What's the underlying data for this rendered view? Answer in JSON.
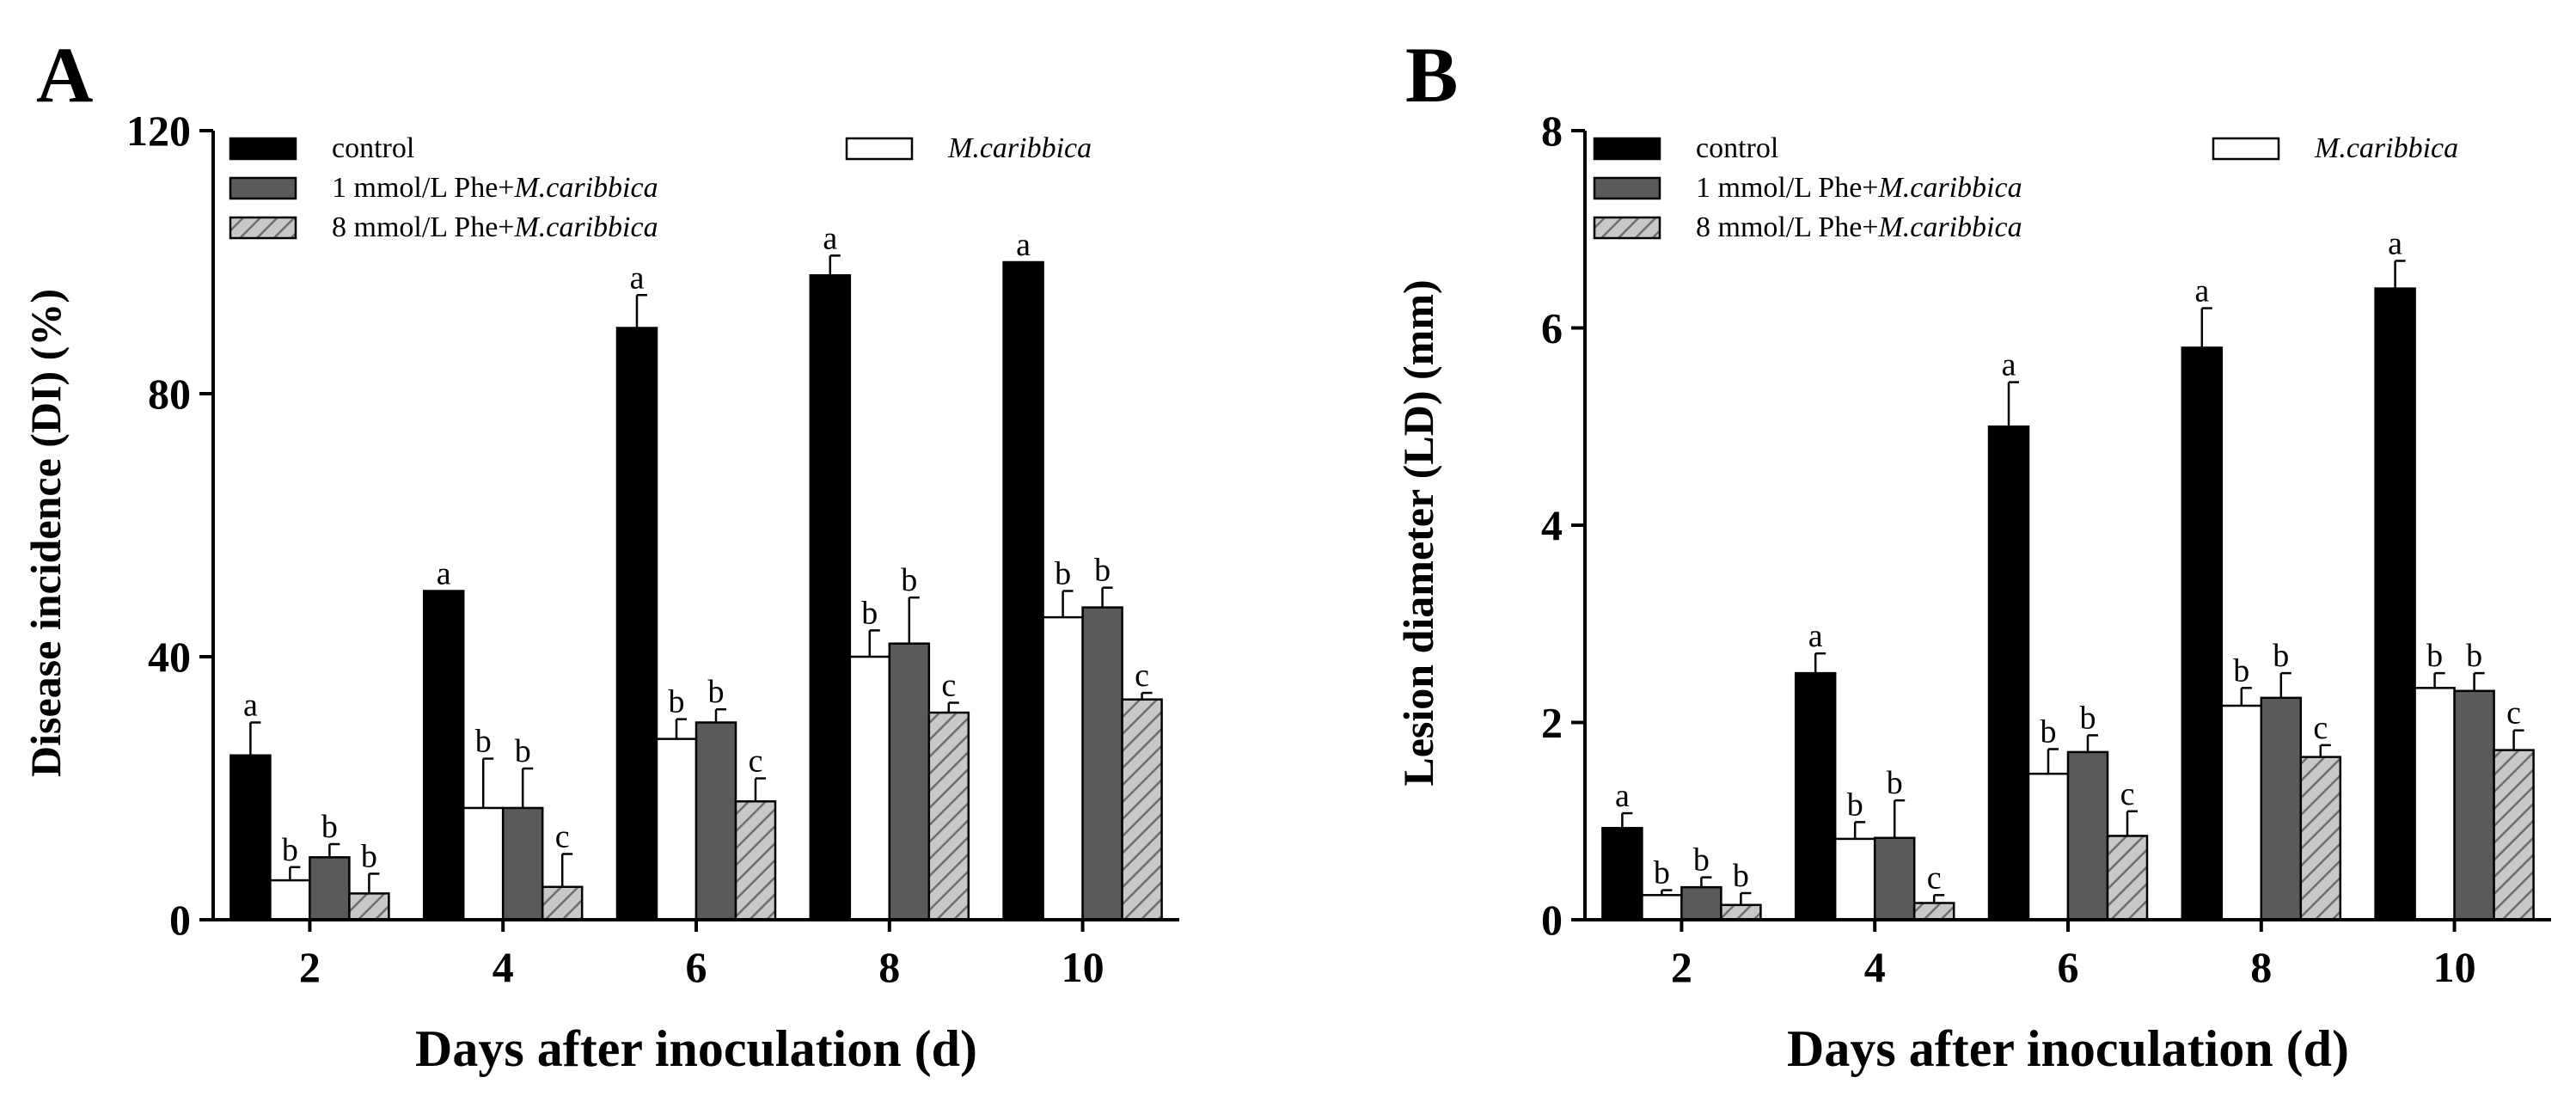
{
  "chart_data": [
    {
      "type": "bar",
      "panel_label": "A",
      "xlabel": "Days after inoculation (d)",
      "ylabel": "Disease incidence (DI) (%)",
      "categories": [
        "2",
        "4",
        "6",
        "8",
        "10"
      ],
      "ylim": [
        0,
        120
      ],
      "yticks": [
        "0",
        "40",
        "80",
        "120"
      ],
      "legend_position": "top, inside plot area",
      "series": [
        {
          "name": "control",
          "fill": "solid-black",
          "values": [
            25,
            50,
            90,
            98,
            100
          ],
          "errors": [
            5,
            0,
            5,
            3,
            0
          ],
          "letters": [
            "a",
            "a",
            "a",
            "a",
            "a"
          ]
        },
        {
          "name": "M.caribbica",
          "fill": "white",
          "values": [
            6,
            17,
            27.5,
            40,
            46
          ],
          "errors": [
            2,
            7.5,
            3,
            4,
            4
          ],
          "letters": [
            "b",
            "b",
            "b",
            "b",
            "b"
          ]
        },
        {
          "name": "1 mmol/L Phe+M.caribbica",
          "fill": "dark-gray",
          "values": [
            9.5,
            17,
            30,
            42,
            47.5
          ],
          "errors": [
            2,
            6,
            2,
            7,
            3
          ],
          "letters": [
            "b",
            "b",
            "b",
            "b",
            "b"
          ]
        },
        {
          "name": "8 mmol/L Phe+M.caribbica",
          "fill": "hatched-gray",
          "values": [
            4,
            5,
            18,
            31.5,
            33.5
          ],
          "errors": [
            3,
            5,
            3.5,
            1.5,
            1
          ],
          "letters": [
            "b",
            "c",
            "c",
            "c",
            "c"
          ]
        }
      ],
      "legend_labels": {
        "control": "control",
        "mc": "M.caribbica",
        "phe1_prefix": "1 mmol/L Phe+",
        "phe1_italic": "M.caribbica",
        "phe8_prefix": "8 mmol/L Phe+",
        "phe8_italic": "M.caribbica"
      }
    },
    {
      "type": "bar",
      "panel_label": "B",
      "xlabel": "Days after inoculation (d)",
      "ylabel": "Lesion diameter (LD) (mm)",
      "categories": [
        "2",
        "4",
        "6",
        "8",
        "10"
      ],
      "ylim": [
        0,
        8
      ],
      "yticks": [
        "0",
        "2",
        "4",
        "6",
        "8"
      ],
      "legend_position": "top, inside plot area",
      "series": [
        {
          "name": "control",
          "fill": "solid-black",
          "values": [
            0.93,
            2.5,
            5.0,
            5.8,
            6.4
          ],
          "errors": [
            0.15,
            0.2,
            0.45,
            0.4,
            0.28
          ],
          "letters": [
            "a",
            "a",
            "a",
            "a",
            "a"
          ]
        },
        {
          "name": "M.caribbica",
          "fill": "white",
          "values": [
            0.25,
            0.82,
            1.48,
            2.17,
            2.35
          ],
          "errors": [
            0.05,
            0.17,
            0.25,
            0.18,
            0.15
          ],
          "letters": [
            "b",
            "b",
            "b",
            "b",
            "b"
          ]
        },
        {
          "name": "1 mmol/L Phe+M.caribbica",
          "fill": "dark-gray",
          "values": [
            0.33,
            0.83,
            1.7,
            2.25,
            2.32
          ],
          "errors": [
            0.1,
            0.38,
            0.17,
            0.25,
            0.18
          ],
          "letters": [
            "b",
            "b",
            "b",
            "b",
            "b"
          ]
        },
        {
          "name": "8 mmol/L Phe+M.caribbica",
          "fill": "hatched-gray",
          "values": [
            0.15,
            0.17,
            0.85,
            1.65,
            1.72
          ],
          "errors": [
            0.12,
            0.08,
            0.25,
            0.12,
            0.2
          ],
          "letters": [
            "b",
            "c",
            "c",
            "c",
            "c"
          ]
        }
      ],
      "legend_labels": {
        "control": "control",
        "mc": "M.caribbica",
        "phe1_prefix": "1 mmol/L Phe+",
        "phe1_italic": "M.caribbica",
        "phe8_prefix": "8 mmol/L Phe+",
        "phe8_italic": "M.caribbica"
      }
    }
  ],
  "colors": {
    "control": "#000000",
    "mc": "#ffffff",
    "phe1": "#5a5a5a",
    "phe8_fill": "#c8c8c8",
    "phe8_hatch": "#6e6e6e",
    "axis": "#000000"
  }
}
